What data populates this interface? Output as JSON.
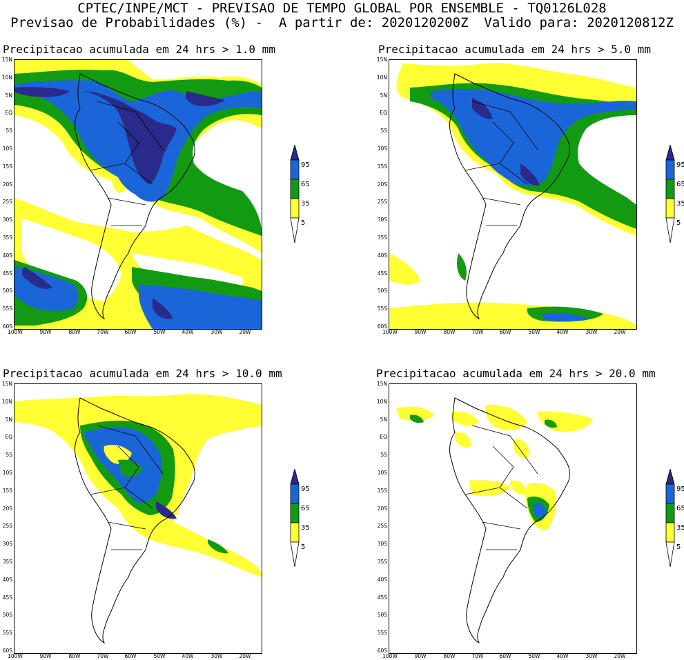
{
  "header": {
    "line1": "CPTEC/INPE/MCT - PREVISAO DE TEMPO GLOBAL POR ENSEMBLE - TQ0126L028",
    "line2": "Previsao de Probabilidades (%) -  A partir de: 2020120200Z  Valido para: 2020120812Z"
  },
  "panels": [
    {
      "title": "Precipitacao acumulada em 24 hrs > 1.0 mm"
    },
    {
      "title": "Precipitacao acumulada em 24 hrs > 5.0 mm"
    },
    {
      "title": "Precipitacao acumulada em 24 hrs > 10.0 mm"
    },
    {
      "title": "Precipitacao acumulada em 24 hrs > 20.0 mm"
    }
  ],
  "lat_labels": [
    "15N",
    "10N",
    "5N",
    "EQ",
    "5S",
    "10S",
    "15S",
    "20S",
    "25S",
    "30S",
    "35S",
    "40S",
    "45S",
    "50S",
    "55S",
    "60S"
  ],
  "lon_labels": [
    "100W",
    "90W",
    "80W",
    "70W",
    "60W",
    "50W",
    "40W",
    "30W",
    "20W"
  ],
  "legend": {
    "levels": [
      "95",
      "65",
      "35",
      "5"
    ],
    "colors": {
      "c5": "#ffff33",
      "c35": "#139a13",
      "c65": "#1a66d9",
      "c95": "#2a2a8a"
    }
  }
}
